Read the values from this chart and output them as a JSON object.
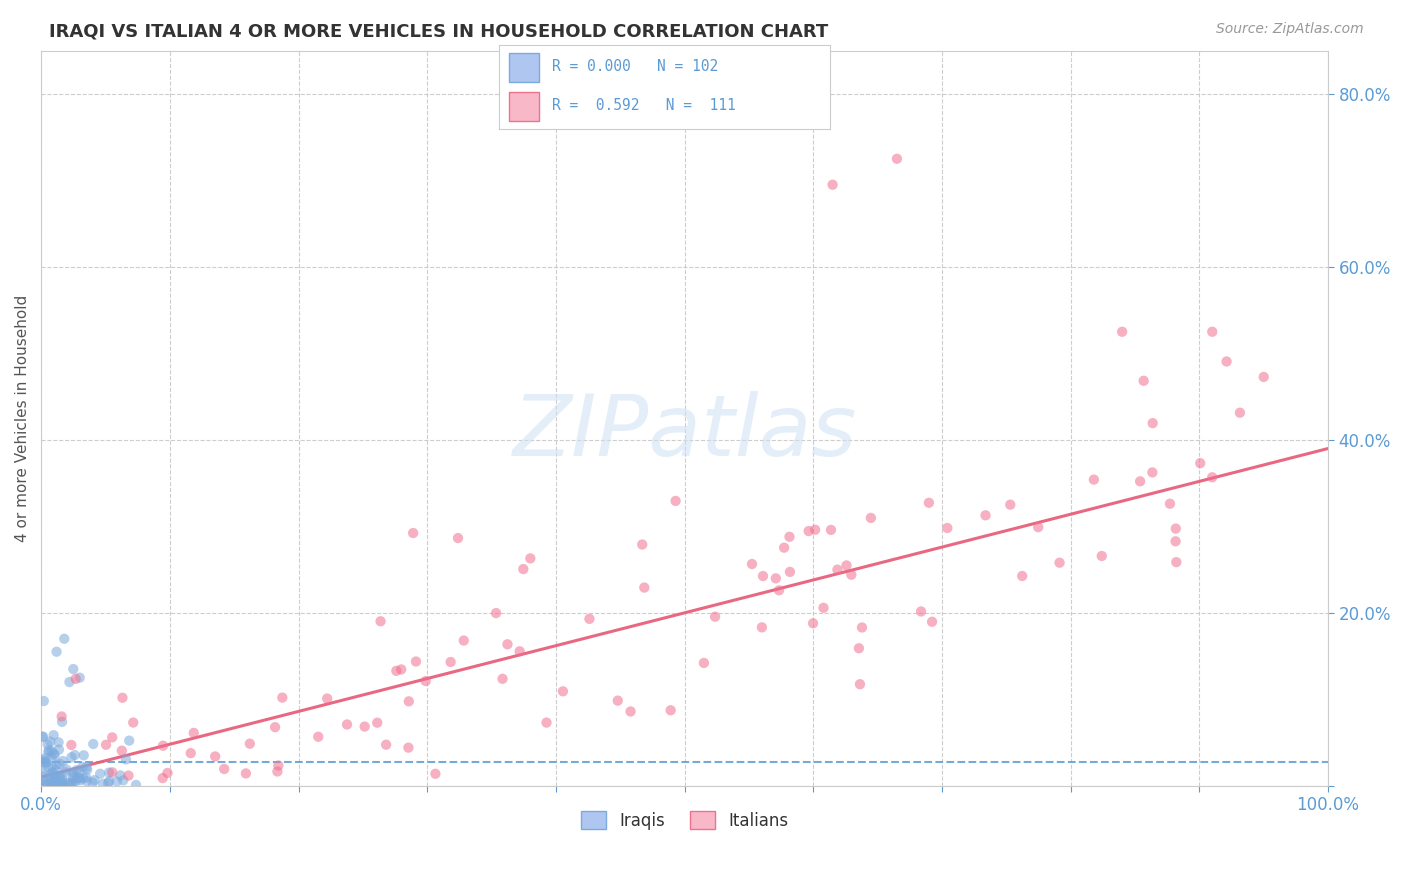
{
  "title": "IRAQI VS ITALIAN 4 OR MORE VEHICLES IN HOUSEHOLD CORRELATION CHART",
  "source_text": "Source: ZipAtlas.com",
  "ylabel": "4 or more Vehicles in Household",
  "xlim": [
    0.0,
    1.0
  ],
  "ylim": [
    0.0,
    0.85
  ],
  "x_ticks": [
    0.0,
    0.1,
    0.2,
    0.3,
    0.4,
    0.5,
    0.6,
    0.7,
    0.8,
    0.9,
    1.0
  ],
  "y_ticks": [
    0.0,
    0.2,
    0.4,
    0.6,
    0.8
  ],
  "iraqis_color": "#7baade",
  "italians_color": "#f07090",
  "iraqis_fill": "#aec6f0",
  "italians_fill": "#f9b8c8",
  "iraqis_R": 0.0,
  "italians_R": 0.592,
  "iraqis_N": 102,
  "italians_N": 111,
  "watermark": "ZIPatlas",
  "grid_color": "#c8c8c8",
  "background_color": "#ffffff",
  "title_color": "#333333",
  "tick_label_color": "#5b9bd5",
  "regression_italian_color": "#e8607a",
  "regression_iraqi_color": "#5b9bd5",
  "iraqi_line_y": 0.028,
  "italian_slope": 0.38,
  "italian_intercept": 0.01
}
